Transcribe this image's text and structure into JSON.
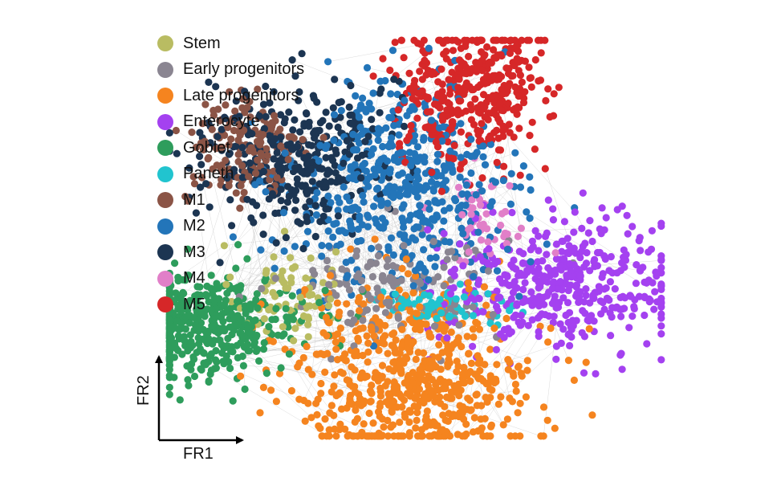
{
  "chart_data": {
    "type": "scatter",
    "xlabel": "FR1",
    "ylabel": "FR2",
    "xlim": [
      0,
      100
    ],
    "ylim": [
      0,
      100
    ],
    "grid": false,
    "legend_position": "top-left",
    "series": [
      {
        "name": "Stem",
        "color": "#b9bc62",
        "center": [
          24,
          36
        ],
        "spread": [
          5,
          6
        ],
        "count": 70
      },
      {
        "name": "Early progenitors",
        "color": "#8a8591",
        "center": [
          46,
          38
        ],
        "spread": [
          11,
          7
        ],
        "count": 150
      },
      {
        "name": "Late progenitors",
        "color": "#f5841f",
        "center": [
          50,
          16
        ],
        "spread": [
          12,
          11
        ],
        "count": 650
      },
      {
        "name": "Enterocyte",
        "color": "#a441f0",
        "center": [
          79,
          38
        ],
        "spread": [
          12,
          8
        ],
        "count": 420
      },
      {
        "name": "Goblet",
        "color": "#2e9d5c",
        "center": [
          8,
          28
        ],
        "spread": [
          10,
          6
        ],
        "count": 450
      },
      {
        "name": "Paneth",
        "color": "#21c4cf",
        "center": [
          55,
          33
        ],
        "spread": [
          7,
          3
        ],
        "count": 70
      },
      {
        "name": "M1",
        "color": "#8b5446",
        "center": [
          16,
          71
        ],
        "spread": [
          6,
          7
        ],
        "count": 160
      },
      {
        "name": "M2",
        "color": "#2375b9",
        "center": [
          47,
          62
        ],
        "spread": [
          11,
          12
        ],
        "count": 520
      },
      {
        "name": "M3",
        "color": "#1c3552",
        "center": [
          26,
          70
        ],
        "spread": [
          9,
          9
        ],
        "count": 360
      },
      {
        "name": "M4",
        "color": "#e17fc8",
        "center": [
          63,
          54
        ],
        "spread": [
          4,
          6
        ],
        "count": 50
      },
      {
        "name": "M5",
        "color": "#d62728",
        "center": [
          61,
          86
        ],
        "spread": [
          7,
          9
        ],
        "count": 380
      }
    ]
  }
}
